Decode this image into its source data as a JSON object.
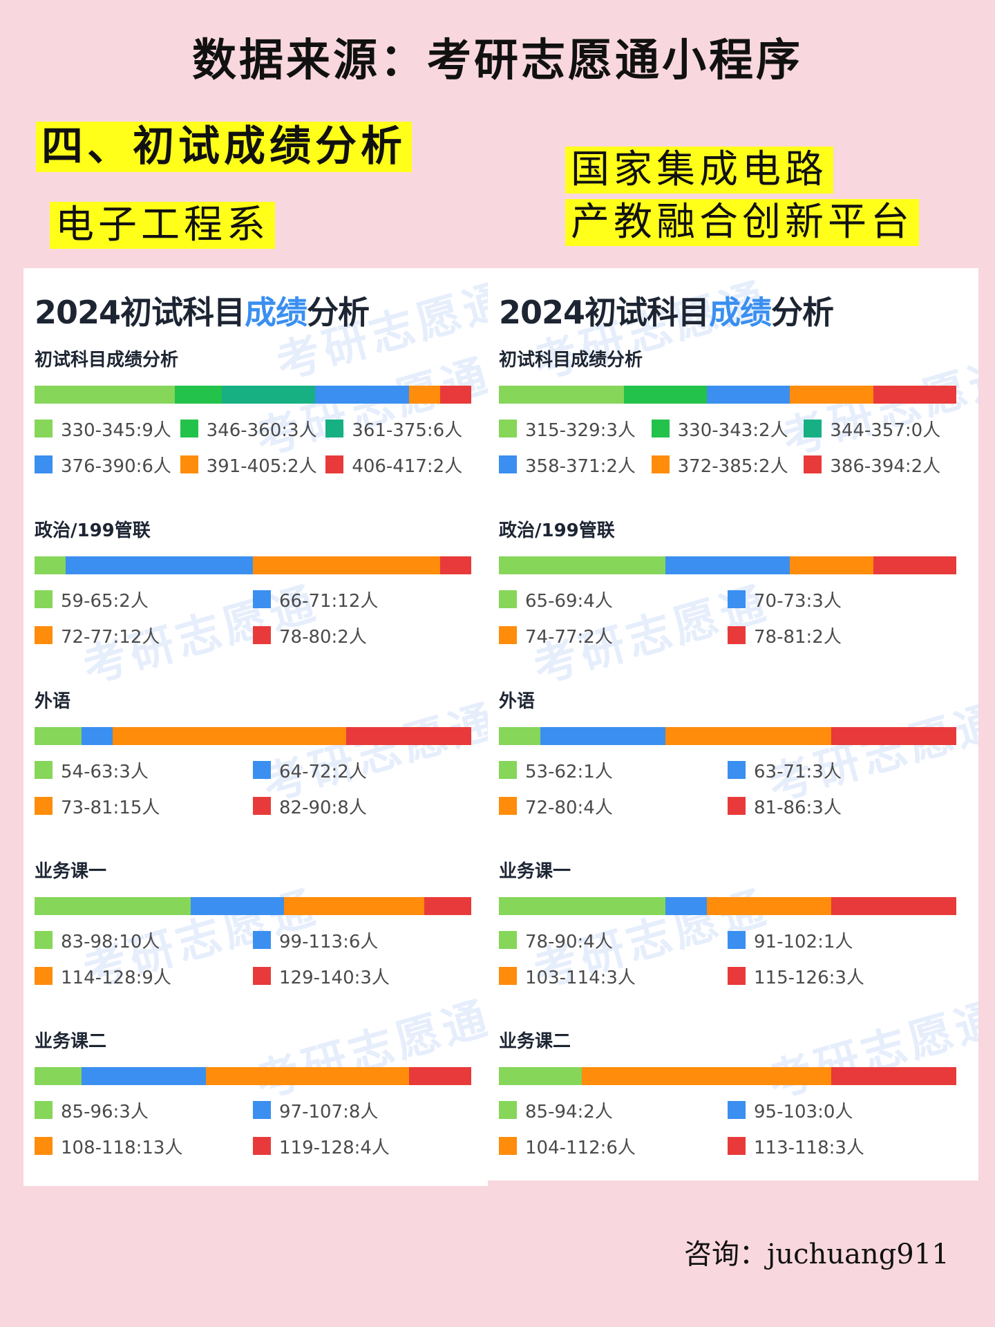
{
  "header": {
    "title": "数据来源：考研志愿通小程序",
    "section_heading": "四、初试成绩分析",
    "left_label": "电子工程系",
    "right_label_line1": "国家集成电路",
    "right_label_line2": "产教融合创新平台"
  },
  "footer": {
    "consult": "咨询：juchuang911"
  },
  "watermark_text": "考研志愿通",
  "colors": {
    "c1": "#86d65a",
    "c2": "#23c24a",
    "c3": "#16b083",
    "c4": "#3a8ff0",
    "c5": "#ff8c0a",
    "c6": "#e83a3a"
  },
  "panels": [
    {
      "title_prefix": "2024初试科目",
      "title_accent": "成绩",
      "title_suffix": "分析"
    },
    {
      "title_prefix": "2024初试科目",
      "title_accent": "成绩",
      "title_suffix": "分析"
    }
  ],
  "chart_data": [
    {
      "panel": "电子工程系",
      "subject": "初试科目成绩分析",
      "type": "bar",
      "categories": [
        "330-345",
        "346-360",
        "361-375",
        "376-390",
        "391-405",
        "406-417"
      ],
      "values": [
        9,
        3,
        6,
        6,
        2,
        2
      ],
      "labels": [
        "330-345:9人",
        "346-360:3人",
        "361-375:6人",
        "376-390:6人",
        "391-405:2人",
        "406-417:2人"
      ],
      "colors": [
        "c1",
        "c2",
        "c3",
        "c4",
        "c5",
        "c6"
      ]
    },
    {
      "panel": "电子工程系",
      "subject": "政治/199管联",
      "type": "bar",
      "categories": [
        "59-65",
        "66-71",
        "72-77",
        "78-80"
      ],
      "values": [
        2,
        12,
        12,
        2
      ],
      "labels": [
        "59-65:2人",
        "66-71:12人",
        "72-77:12人",
        "78-80:2人"
      ],
      "colors": [
        "c1",
        "c4",
        "c5",
        "c6"
      ]
    },
    {
      "panel": "电子工程系",
      "subject": "外语",
      "type": "bar",
      "categories": [
        "54-63",
        "64-72",
        "73-81",
        "82-90"
      ],
      "values": [
        3,
        2,
        15,
        8
      ],
      "labels": [
        "54-63:3人",
        "64-72:2人",
        "73-81:15人",
        "82-90:8人"
      ],
      "colors": [
        "c1",
        "c4",
        "c5",
        "c6"
      ]
    },
    {
      "panel": "电子工程系",
      "subject": "业务课一",
      "type": "bar",
      "categories": [
        "83-98",
        "99-113",
        "114-128",
        "129-140"
      ],
      "values": [
        10,
        6,
        9,
        3
      ],
      "labels": [
        "83-98:10人",
        "99-113:6人",
        "114-128:9人",
        "129-140:3人"
      ],
      "colors": [
        "c1",
        "c4",
        "c5",
        "c6"
      ]
    },
    {
      "panel": "电子工程系",
      "subject": "业务课二",
      "type": "bar",
      "categories": [
        "85-96",
        "97-107",
        "108-118",
        "119-128"
      ],
      "values": [
        3,
        8,
        13,
        4
      ],
      "labels": [
        "85-96:3人",
        "97-107:8人",
        "108-118:13人",
        "119-128:4人"
      ],
      "colors": [
        "c1",
        "c4",
        "c5",
        "c6"
      ]
    },
    {
      "panel": "国家集成电路产教融合创新平台",
      "subject": "初试科目成绩分析",
      "type": "bar",
      "categories": [
        "315-329",
        "330-343",
        "344-357",
        "358-371",
        "372-385",
        "386-394"
      ],
      "values": [
        3,
        2,
        0,
        2,
        2,
        2
      ],
      "labels": [
        "315-329:3人",
        "330-343:2人",
        "344-357:0人",
        "358-371:2人",
        "372-385:2人",
        "386-394:2人"
      ],
      "colors": [
        "c1",
        "c2",
        "c3",
        "c4",
        "c5",
        "c6"
      ]
    },
    {
      "panel": "国家集成电路产教融合创新平台",
      "subject": "政治/199管联",
      "type": "bar",
      "categories": [
        "65-69",
        "70-73",
        "74-77",
        "78-81"
      ],
      "values": [
        4,
        3,
        2,
        2
      ],
      "labels": [
        "65-69:4人",
        "70-73:3人",
        "74-77:2人",
        "78-81:2人"
      ],
      "colors": [
        "c1",
        "c4",
        "c5",
        "c6"
      ]
    },
    {
      "panel": "国家集成电路产教融合创新平台",
      "subject": "外语",
      "type": "bar",
      "categories": [
        "53-62",
        "63-71",
        "72-80",
        "81-86"
      ],
      "values": [
        1,
        3,
        4,
        3
      ],
      "labels": [
        "53-62:1人",
        "63-71:3人",
        "72-80:4人",
        "81-86:3人"
      ],
      "colors": [
        "c1",
        "c4",
        "c5",
        "c6"
      ]
    },
    {
      "panel": "国家集成电路产教融合创新平台",
      "subject": "业务课一",
      "type": "bar",
      "categories": [
        "78-90",
        "91-102",
        "103-114",
        "115-126"
      ],
      "values": [
        4,
        1,
        3,
        3
      ],
      "labels": [
        "78-90:4人",
        "91-102:1人",
        "103-114:3人",
        "115-126:3人"
      ],
      "colors": [
        "c1",
        "c4",
        "c5",
        "c6"
      ]
    },
    {
      "panel": "国家集成电路产教融合创新平台",
      "subject": "业务课二",
      "type": "bar",
      "categories": [
        "85-94",
        "95-103",
        "104-112",
        "113-118"
      ],
      "values": [
        2,
        0,
        6,
        3
      ],
      "labels": [
        "85-94:2人",
        "95-103:0人",
        "104-112:6人",
        "113-118:3人"
      ],
      "colors": [
        "c1",
        "c4",
        "c5",
        "c6"
      ]
    }
  ]
}
